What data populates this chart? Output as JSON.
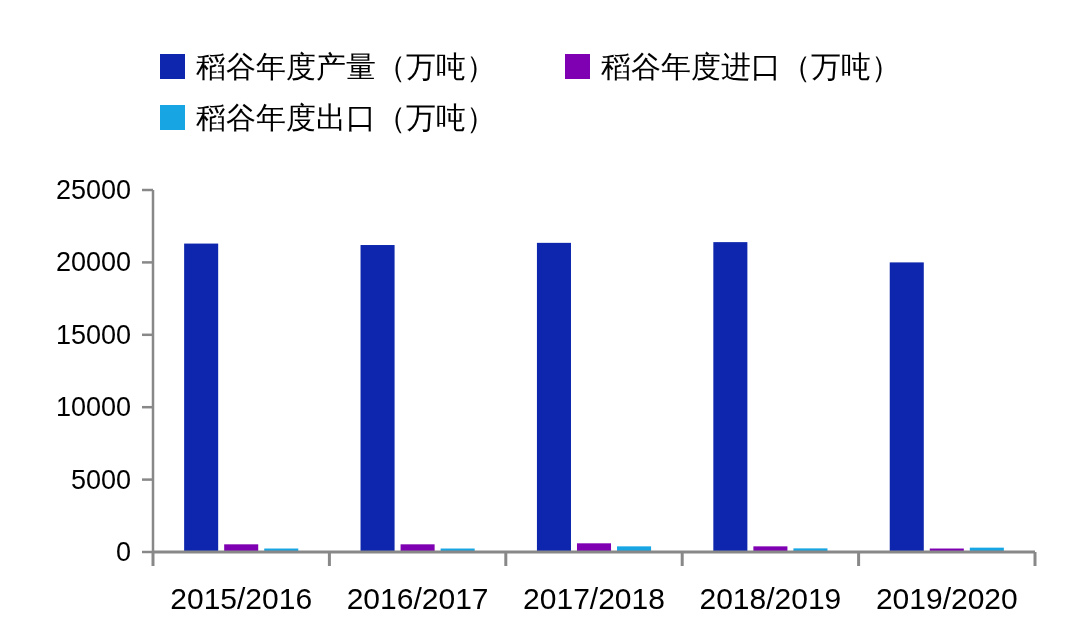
{
  "chart_data": {
    "type": "bar",
    "categories": [
      "2015/2016",
      "2016/2017",
      "2017/2018",
      "2018/2019",
      "2019/2020"
    ],
    "series": [
      {
        "name": "稻谷年度产量（万吨）",
        "color": "#0d26ad",
        "values": [
          21300,
          21200,
          21350,
          21400,
          20000
        ]
      },
      {
        "name": "稻谷年度进口（万吨）",
        "color": "#7f00b2",
        "values": [
          530,
          530,
          600,
          390,
          240
        ]
      },
      {
        "name": "稻谷年度出口（万吨）",
        "color": "#17a6e3",
        "values": [
          240,
          240,
          390,
          250,
          300
        ]
      }
    ],
    "ylim": [
      0,
      25000
    ],
    "yticks": [
      0,
      5000,
      10000,
      15000,
      20000,
      25000
    ],
    "legend": "top"
  }
}
